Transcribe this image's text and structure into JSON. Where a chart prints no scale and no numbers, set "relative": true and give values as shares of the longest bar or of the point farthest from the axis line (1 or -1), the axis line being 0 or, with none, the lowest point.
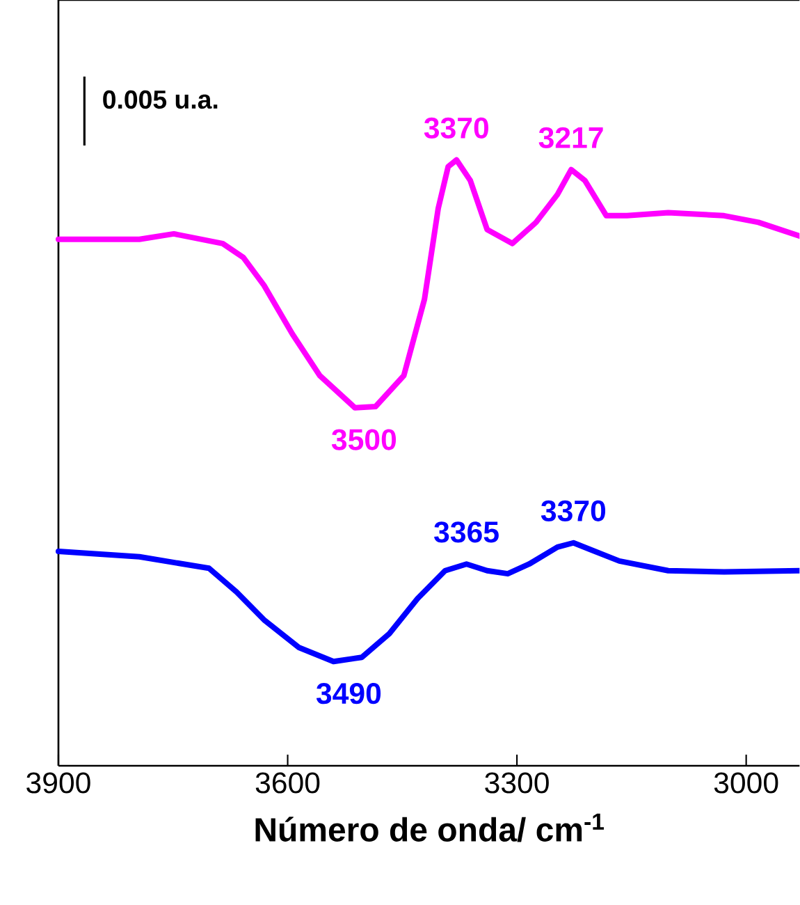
{
  "chart_data": {
    "type": "line",
    "relative": true,
    "xlabel": "Número de onda/ cm$^{-1}$",
    "xlim": [
      3900,
      2929
    ],
    "xticks": [
      3900,
      3600,
      3300,
      3000
    ],
    "tick_labels": "x",
    "line_style": "solid",
    "marker": "none",
    "series": [
      {
        "color": "#ff00ff",
        "x": [
          3900,
          3794,
          3749,
          3685,
          3658,
          3631,
          3594,
          3558,
          3512,
          3485,
          3448,
          3421,
          3403,
          3390,
          3379,
          3361,
          3339,
          3306,
          3275,
          3247,
          3229,
          3211,
          3183,
          3156,
          3102,
          3029,
          2984,
          2929
        ],
        "values": [
          0.869,
          0.869,
          0.878,
          0.862,
          0.839,
          0.793,
          0.713,
          0.644,
          0.591,
          0.593,
          0.644,
          0.77,
          0.92,
          0.989,
          1.0,
          0.966,
          0.885,
          0.862,
          0.897,
          0.943,
          0.984,
          0.966,
          0.908,
          0.908,
          0.913,
          0.908,
          0.897,
          0.874
        ]
      },
      {
        "color": "#0000ff",
        "x": [
          3900,
          3794,
          3703,
          3667,
          3631,
          3585,
          3540,
          3503,
          3467,
          3430,
          3394,
          3366,
          3339,
          3312,
          3284,
          3247,
          3226,
          3202,
          3166,
          3102,
          3029,
          2929
        ],
        "values": [
          0.354,
          0.345,
          0.326,
          0.287,
          0.241,
          0.195,
          0.172,
          0.179,
          0.218,
          0.276,
          0.322,
          0.333,
          0.322,
          0.317,
          0.333,
          0.361,
          0.368,
          0.356,
          0.338,
          0.322,
          0.32,
          0.322
        ]
      }
    ],
    "annotations": [
      "0.005 u.a.",
      {
        "text": "3370",
        "x": 3379,
        "y": 1.0
      },
      {
        "text": "3217",
        "x": 3229,
        "y": 0.984
      },
      {
        "text": "3500",
        "x": 3500,
        "y": 0.591
      },
      {
        "text": "3365",
        "x": 3366,
        "y": 0.333
      },
      {
        "text": "3370",
        "x": 3226,
        "y": 0.368
      },
      {
        "text": "3490",
        "x": 3520,
        "y": 0.172
      }
    ]
  }
}
